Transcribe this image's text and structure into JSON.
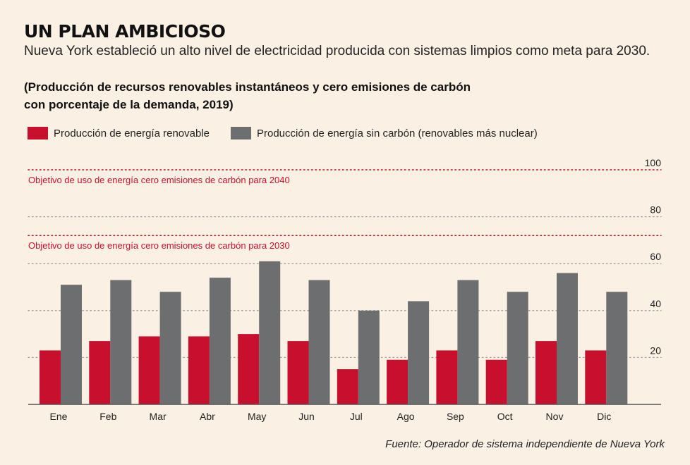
{
  "header": {
    "title": "UN PLAN AMBICIOSO",
    "subtitle": "Nueva York estableció un alto nivel de electricidad producida con sistemas limpios como meta para 2030."
  },
  "chart_heading": {
    "line1": "(Producción de recursos renovables instantáneos y cero emisiones de carbón",
    "line2": "con porcentaje de la demanda, 2019)"
  },
  "legend": {
    "renewable": "Producción de energía renovable",
    "carbon_free": "Producción de energía sin carbón (renovables más nuclear)"
  },
  "source": "Fuente: Operador de sistema independiente de Nueva York",
  "colors": {
    "renewable": "#c8102e",
    "carbon_free": "#6d6e70",
    "target": "#c8102e",
    "grid": "#9a9a9a",
    "background": "#fbf0e4"
  },
  "chart_data": {
    "type": "bar",
    "categories": [
      "Ene",
      "Feb",
      "Mar",
      "Abr",
      "May",
      "Jun",
      "Jul",
      "Ago",
      "Sep",
      "Oct",
      "Nov",
      "Dic"
    ],
    "series": [
      {
        "name": "Producción de energía renovable",
        "values": [
          23,
          27,
          29,
          29,
          30,
          27,
          15,
          19,
          23,
          19,
          27,
          23
        ]
      },
      {
        "name": "Producción de energía sin carbón (renovables más nuclear)",
        "values": [
          51,
          53,
          48,
          54,
          61,
          53,
          40,
          44,
          53,
          48,
          56,
          48
        ]
      }
    ],
    "ylim": [
      0,
      100
    ],
    "yticks": [
      20,
      40,
      60,
      80,
      100
    ],
    "grid": true,
    "legend_position": "top-left",
    "targets": [
      {
        "value": 100,
        "label": "Objetivo de uso de energía cero emisiones de carbón para 2040"
      },
      {
        "value": 72,
        "label": "Objetivo de uso de energía cero emisiones de carbón para 2030"
      }
    ]
  }
}
